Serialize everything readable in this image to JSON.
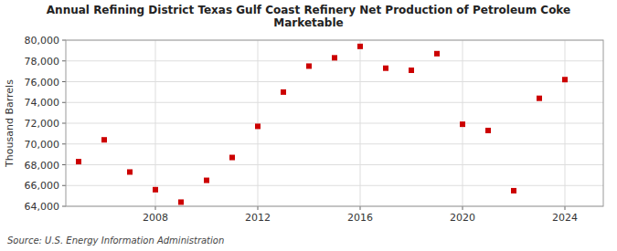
{
  "chart_data": {
    "type": "scatter",
    "title": "Annual Refining District Texas Gulf Coast Refinery Net Production of Petroleum Coke\nMarketable",
    "ylabel": "Thousand Barrels",
    "annotations": [
      "Source: U.S. Energy Information Administration"
    ],
    "color": "#cc0000",
    "marker": "square",
    "grid": true,
    "x": [
      2005,
      2006,
      2007,
      2008,
      2009,
      2010,
      2011,
      2012,
      2013,
      2014,
      2015,
      2016,
      2017,
      2018,
      2019,
      2020,
      2021,
      2022,
      2023,
      2024
    ],
    "values": [
      68300,
      70400,
      67300,
      65600,
      64400,
      66500,
      68700,
      71700,
      75000,
      77500,
      78300,
      79400,
      77300,
      77100,
      78700,
      71900,
      71300,
      65500,
      74400,
      76200
    ],
    "xlim": [
      2004.5,
      2025.5
    ],
    "ylim": [
      64000,
      80000
    ],
    "xticks": [
      2008,
      2012,
      2016,
      2020,
      2024
    ],
    "yticks": [
      {
        "value": 64000,
        "label": "64,000"
      },
      {
        "value": 66000,
        "label": "66,000"
      },
      {
        "value": 68000,
        "label": "68,000"
      },
      {
        "value": 70000,
        "label": "70,000"
      },
      {
        "value": 72000,
        "label": "72,000"
      },
      {
        "value": 74000,
        "label": "74,000"
      },
      {
        "value": 76000,
        "label": "76,000"
      },
      {
        "value": 78000,
        "label": "78,000"
      },
      {
        "value": 80000,
        "label": "80,000"
      }
    ]
  }
}
